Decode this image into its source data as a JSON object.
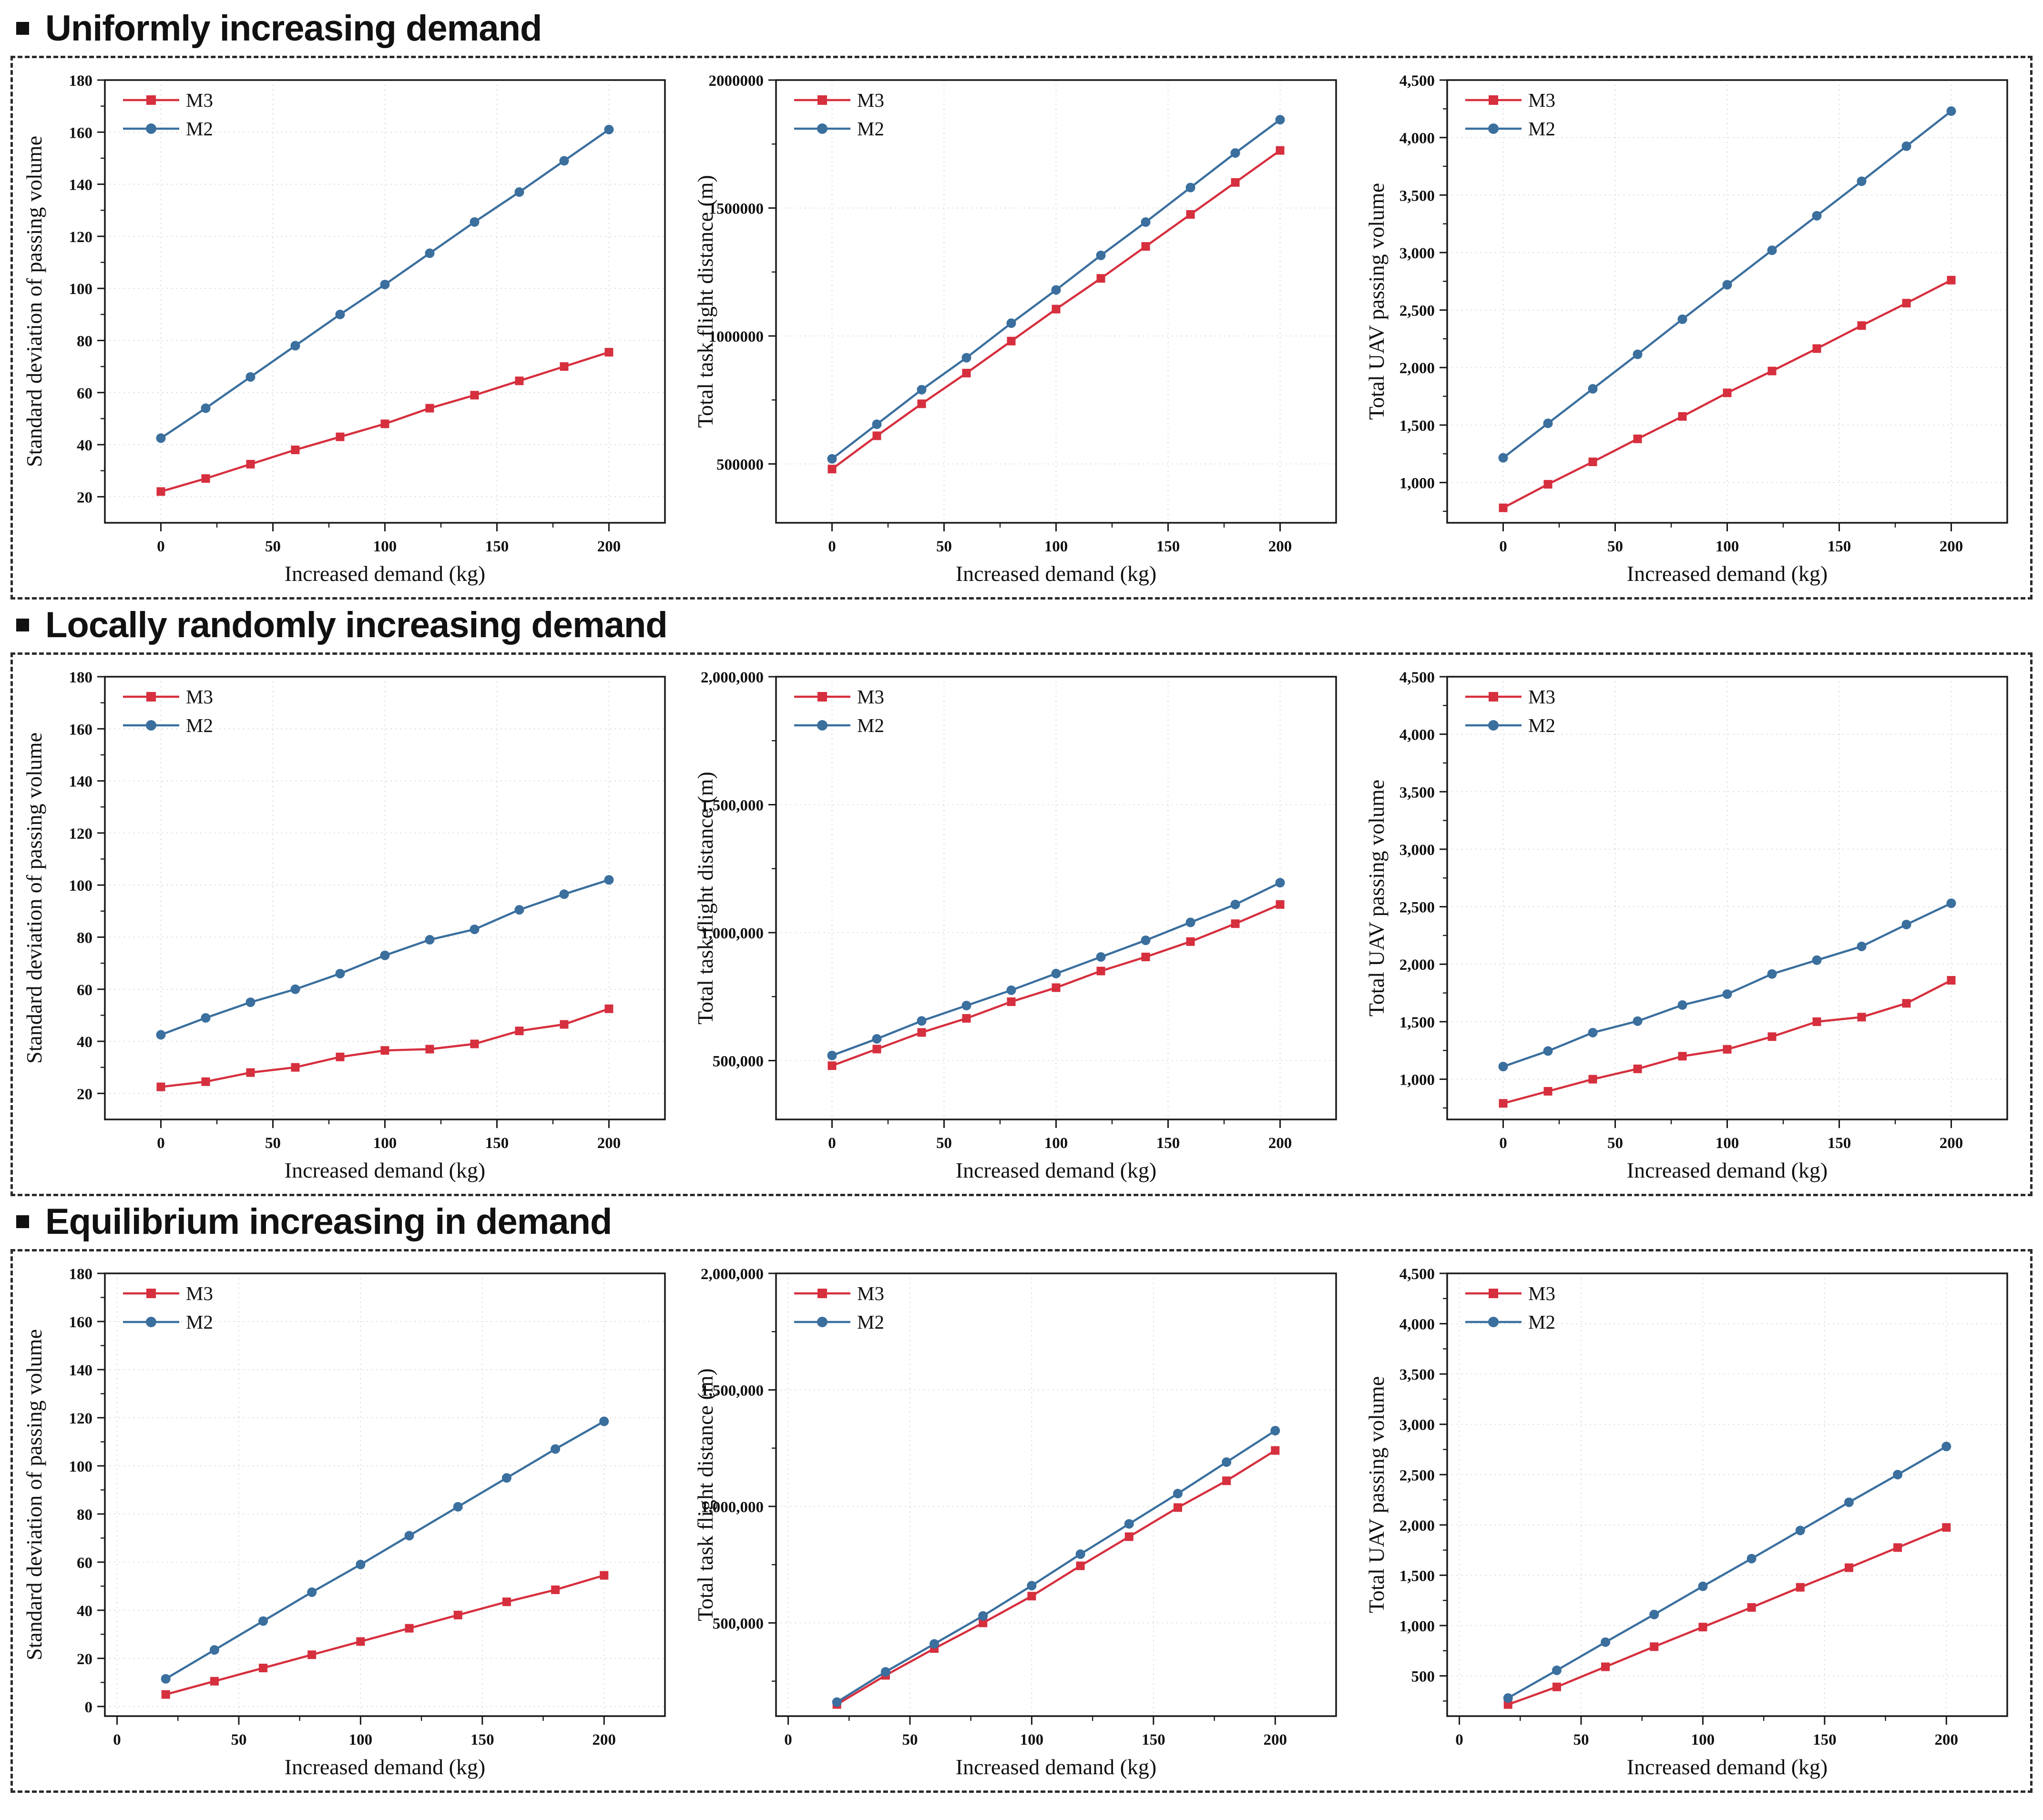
{
  "colors": {
    "m3_red": "#d62f3e",
    "m2_blue": "#3a6f9e",
    "grid": "#c9c9c9",
    "axis": "#1a1a1a"
  },
  "sections": [
    {
      "heading": "Uniformly increasing demand"
    },
    {
      "heading": "Locally randomly increasing demand"
    },
    {
      "heading": "Equilibrium increasing in demand"
    }
  ],
  "chart_data": [
    {
      "section": "Uniformly increasing demand",
      "type": "line",
      "xlabel": "Increased demand (kg)",
      "ylabel": "Standard deviation of passing volume",
      "x": [
        0,
        20,
        40,
        60,
        80,
        100,
        120,
        140,
        160,
        180,
        200
      ],
      "xticks": [
        0,
        50,
        100,
        150,
        200
      ],
      "xlim": [
        -25,
        225
      ],
      "yticks": [
        20,
        40,
        60,
        80,
        100,
        120,
        140,
        160,
        180
      ],
      "ylim": [
        10,
        180
      ],
      "ytick_format": "plain",
      "grid": true,
      "legend_position": "top-left",
      "series": [
        {
          "name": "M3",
          "marker": "square",
          "color": "#d62f3e",
          "values": [
            22,
            27,
            32.5,
            38,
            43,
            48,
            54,
            59,
            64.5,
            70,
            75.5
          ]
        },
        {
          "name": "M2",
          "marker": "circle",
          "color": "#3a6f9e",
          "values": [
            42.5,
            54,
            66,
            78,
            90,
            101.5,
            113.5,
            125.5,
            137,
            149,
            161
          ]
        }
      ]
    },
    {
      "section": "Uniformly increasing demand",
      "type": "line",
      "xlabel": "Increased demand (kg)",
      "ylabel": "Total task flight distance (m)",
      "x": [
        0,
        20,
        40,
        60,
        80,
        100,
        120,
        140,
        160,
        180,
        200
      ],
      "xticks": [
        0,
        50,
        100,
        150,
        200
      ],
      "xlim": [
        -25,
        225
      ],
      "yticks": [
        500000,
        1000000,
        1500000,
        2000000
      ],
      "ylim": [
        270000,
        2000000
      ],
      "ytick_format": "plain",
      "grid": true,
      "legend_position": "top-left",
      "series": [
        {
          "name": "M3",
          "marker": "square",
          "color": "#d62f3e",
          "values": [
            480000,
            610000,
            735000,
            855000,
            980000,
            1105000,
            1225000,
            1350000,
            1475000,
            1600000,
            1725000
          ]
        },
        {
          "name": "M2",
          "marker": "circle",
          "color": "#3a6f9e",
          "values": [
            520000,
            655000,
            790000,
            915000,
            1050000,
            1180000,
            1315000,
            1445000,
            1580000,
            1715000,
            1845000
          ]
        }
      ]
    },
    {
      "section": "Uniformly increasing demand",
      "type": "line",
      "xlabel": "Increased demand (kg)",
      "ylabel": "Total UAV passing volume",
      "x": [
        0,
        20,
        40,
        60,
        80,
        100,
        120,
        140,
        160,
        180,
        200
      ],
      "xticks": [
        0,
        50,
        100,
        150,
        200
      ],
      "xlim": [
        -25,
        225
      ],
      "yticks": [
        1000,
        1500,
        2000,
        2500,
        3000,
        3500,
        4000,
        4500
      ],
      "ylim": [
        650,
        4500
      ],
      "ytick_format": "comma",
      "grid": true,
      "legend_position": "top-left",
      "series": [
        {
          "name": "M3",
          "marker": "square",
          "color": "#d62f3e",
          "values": [
            780,
            985,
            1180,
            1380,
            1575,
            1780,
            1970,
            2165,
            2365,
            2560,
            2760
          ]
        },
        {
          "name": "M2",
          "marker": "circle",
          "color": "#3a6f9e",
          "values": [
            1215,
            1515,
            1815,
            2115,
            2420,
            2720,
            3020,
            3320,
            3620,
            3925,
            4230
          ]
        }
      ]
    },
    {
      "section": "Locally randomly increasing demand",
      "type": "line",
      "xlabel": "Increased demand (kg)",
      "ylabel": "Standard deviation of passing volume",
      "x": [
        0,
        20,
        40,
        60,
        80,
        100,
        120,
        140,
        160,
        180,
        200
      ],
      "xticks": [
        0,
        50,
        100,
        150,
        200
      ],
      "xlim": [
        -25,
        225
      ],
      "yticks": [
        20,
        40,
        60,
        80,
        100,
        120,
        140,
        160,
        180
      ],
      "ylim": [
        10,
        180
      ],
      "ytick_format": "plain",
      "grid": true,
      "legend_position": "top-left",
      "series": [
        {
          "name": "M3",
          "marker": "square",
          "color": "#d62f3e",
          "values": [
            22.5,
            24.5,
            28,
            30,
            34,
            36.5,
            37,
            39,
            44,
            46.5,
            52.5
          ]
        },
        {
          "name": "M2",
          "marker": "circle",
          "color": "#3a6f9e",
          "values": [
            42.5,
            49,
            55,
            60,
            66,
            73,
            79,
            83,
            90.5,
            96.5,
            102
          ]
        }
      ]
    },
    {
      "section": "Locally randomly increasing demand",
      "type": "line",
      "xlabel": "Increased demand (kg)",
      "ylabel": "Total task flight distance (m)",
      "x": [
        0,
        20,
        40,
        60,
        80,
        100,
        120,
        140,
        160,
        180,
        200
      ],
      "xticks": [
        0,
        50,
        100,
        150,
        200
      ],
      "xlim": [
        -25,
        225
      ],
      "yticks": [
        500000,
        1000000,
        1500000,
        2000000
      ],
      "ylim": [
        270000,
        2000000
      ],
      "ytick_format": "comma",
      "grid": true,
      "legend_position": "top-left",
      "series": [
        {
          "name": "M3",
          "marker": "square",
          "color": "#d62f3e",
          "values": [
            480000,
            545000,
            610000,
            665000,
            730000,
            785000,
            850000,
            905000,
            965000,
            1035000,
            1110000
          ]
        },
        {
          "name": "M2",
          "marker": "circle",
          "color": "#3a6f9e",
          "values": [
            520000,
            585000,
            655000,
            715000,
            775000,
            840000,
            905000,
            970000,
            1040000,
            1110000,
            1195000
          ]
        }
      ]
    },
    {
      "section": "Locally randomly increasing demand",
      "type": "line",
      "xlabel": "Increased demand (kg)",
      "ylabel": "Total UAV passing volume",
      "x": [
        0,
        20,
        40,
        60,
        80,
        100,
        120,
        140,
        160,
        180,
        200
      ],
      "xticks": [
        0,
        50,
        100,
        150,
        200
      ],
      "xlim": [
        -25,
        225
      ],
      "yticks": [
        1000,
        1500,
        2000,
        2500,
        3000,
        3500,
        4000,
        4500
      ],
      "ylim": [
        650,
        4500
      ],
      "ytick_format": "comma",
      "grid": true,
      "legend_position": "top-left",
      "series": [
        {
          "name": "M3",
          "marker": "square",
          "color": "#d62f3e",
          "values": [
            790,
            895,
            1000,
            1090,
            1200,
            1260,
            1370,
            1500,
            1540,
            1660,
            1860
          ]
        },
        {
          "name": "M2",
          "marker": "circle",
          "color": "#3a6f9e",
          "values": [
            1110,
            1245,
            1405,
            1505,
            1645,
            1740,
            1915,
            2035,
            2155,
            2345,
            2530
          ]
        }
      ]
    },
    {
      "section": "Equilibrium increasing in demand",
      "type": "line",
      "xlabel": "Increased demand (kg)",
      "ylabel": "Standard deviation of passing volume",
      "x": [
        20,
        40,
        60,
        80,
        100,
        120,
        140,
        160,
        180,
        200
      ],
      "xticks": [
        0,
        50,
        100,
        150,
        200
      ],
      "xlim": [
        -5,
        225
      ],
      "yticks": [
        0,
        20,
        40,
        60,
        80,
        100,
        120,
        140,
        160,
        180
      ],
      "ylim": [
        -4,
        180
      ],
      "ytick_format": "plain",
      "grid": true,
      "legend_position": "top-left",
      "series": [
        {
          "name": "M3",
          "marker": "square",
          "color": "#d62f3e",
          "values": [
            5,
            10.5,
            16,
            21.5,
            27,
            32.5,
            38,
            43.5,
            48.5,
            54.5
          ]
        },
        {
          "name": "M2",
          "marker": "circle",
          "color": "#3a6f9e",
          "values": [
            11.5,
            23.5,
            35.5,
            47.5,
            59,
            71,
            83,
            95,
            107,
            118.5
          ]
        }
      ]
    },
    {
      "section": "Equilibrium increasing in demand",
      "type": "line",
      "xlabel": "Increased demand (kg)",
      "ylabel": "Total task flight distance (m)",
      "x": [
        20,
        40,
        60,
        80,
        100,
        120,
        140,
        160,
        180,
        200
      ],
      "xticks": [
        0,
        50,
        100,
        150,
        200
      ],
      "xlim": [
        -5,
        225
      ],
      "yticks": [
        500000,
        1000000,
        1500000,
        2000000
      ],
      "ylim": [
        100000,
        2000000
      ],
      "ytick_format": "comma",
      "grid": true,
      "legend_position": "top-left",
      "series": [
        {
          "name": "M3",
          "marker": "square",
          "color": "#d62f3e",
          "values": [
            150000,
            275000,
            390000,
            500000,
            615000,
            745000,
            870000,
            995000,
            1110000,
            1240000
          ]
        },
        {
          "name": "M2",
          "marker": "circle",
          "color": "#3a6f9e",
          "values": [
            160000,
            290000,
            410000,
            530000,
            660000,
            795000,
            925000,
            1055000,
            1190000,
            1325000
          ]
        }
      ]
    },
    {
      "section": "Equilibrium increasing in demand",
      "type": "line",
      "xlabel": "Increased demand (kg)",
      "ylabel": "Total UAV passing volume",
      "x": [
        20,
        40,
        60,
        80,
        100,
        120,
        140,
        160,
        180,
        200
      ],
      "xticks": [
        0,
        50,
        100,
        150,
        200
      ],
      "xlim": [
        -5,
        225
      ],
      "yticks": [
        500,
        1000,
        1500,
        2000,
        2500,
        3000,
        3500,
        4000,
        4500
      ],
      "ylim": [
        100,
        4500
      ],
      "ytick_format": "comma",
      "grid": true,
      "legend_position": "top-left",
      "series": [
        {
          "name": "M3",
          "marker": "square",
          "color": "#d62f3e",
          "values": [
            215,
            390,
            590,
            790,
            985,
            1180,
            1380,
            1575,
            1775,
            1975
          ]
        },
        {
          "name": "M2",
          "marker": "circle",
          "color": "#3a6f9e",
          "values": [
            280,
            555,
            835,
            1110,
            1390,
            1665,
            1945,
            2225,
            2500,
            2780
          ]
        }
      ]
    }
  ]
}
